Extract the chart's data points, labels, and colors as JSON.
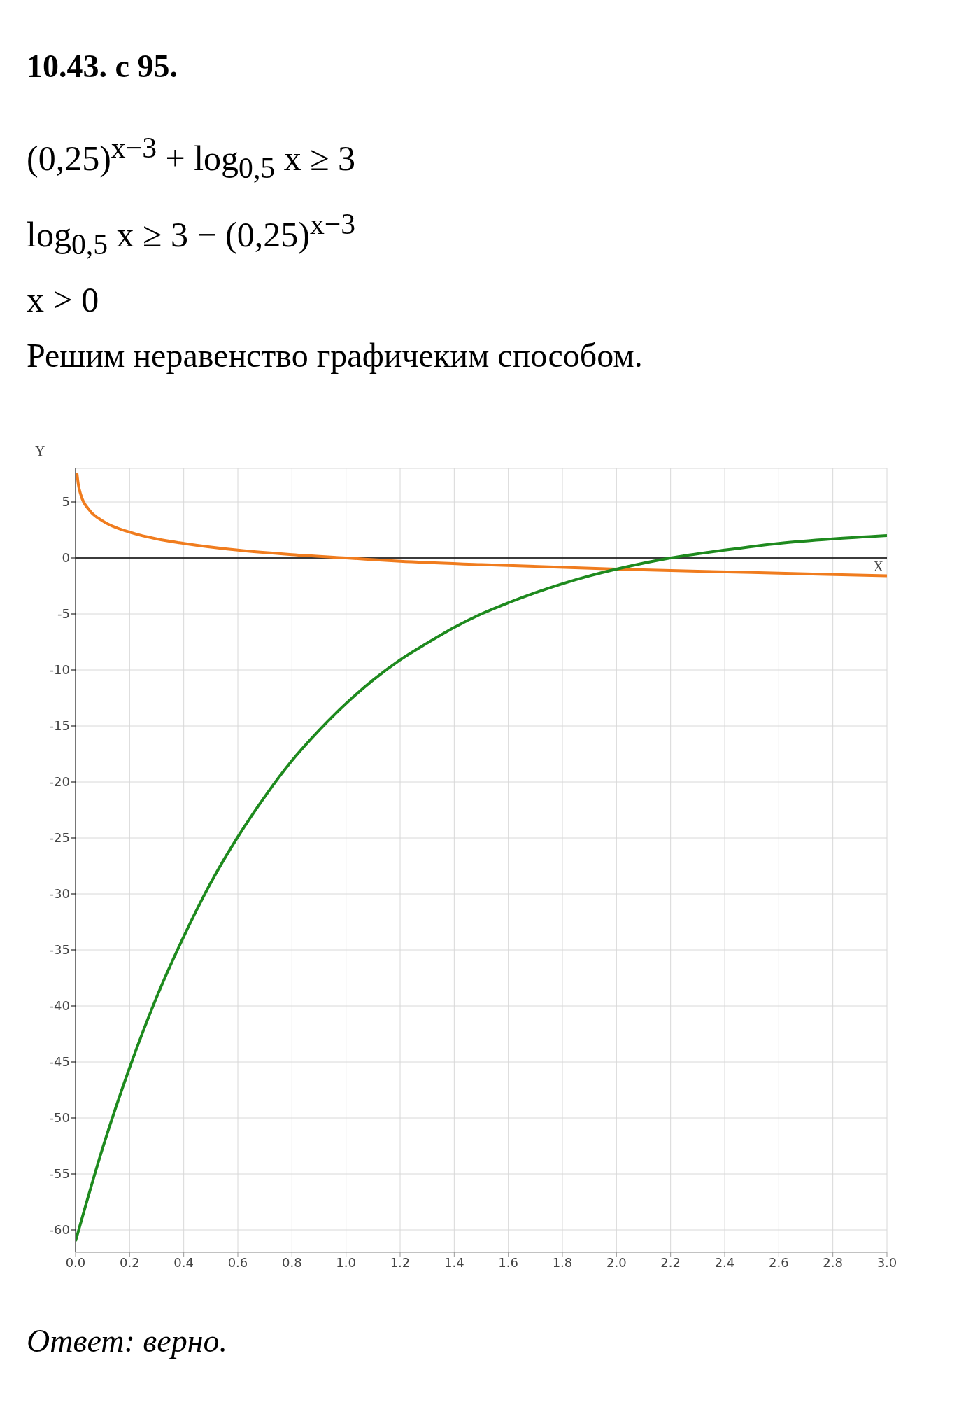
{
  "chart_data": {
    "type": "line",
    "title": "10.43. с 95.",
    "annotations": [
      "(0,25)$^{x−3}$ + log$_{0,5}$ x ≥ 3",
      "log$_{0,5}$ x ≥ 3 − (0,25)$^{x−3}$",
      "x > 0",
      "Решим неравенство графичеким способом.",
      "Ответ: верно."
    ],
    "xlabel": "X",
    "ylabel": "Y",
    "xlim": [
      0,
      3
    ],
    "ylim": [
      -62,
      8
    ],
    "xticks": [
      {
        "value": 0,
        "label": "0.0"
      },
      {
        "value": 0.2,
        "label": "0.2"
      },
      {
        "value": 0.4,
        "label": "0.4"
      },
      {
        "value": 0.6,
        "label": "0.6"
      },
      {
        "value": 0.8,
        "label": "0.8"
      },
      {
        "value": 1,
        "label": "1.0"
      },
      {
        "value": 1.2,
        "label": "1.2"
      },
      {
        "value": 1.4,
        "label": "1.4"
      },
      {
        "value": 1.6,
        "label": "1.6"
      },
      {
        "value": 1.8,
        "label": "1.8"
      },
      {
        "value": 2,
        "label": "2.0"
      },
      {
        "value": 2.2,
        "label": "2.2"
      },
      {
        "value": 2.4,
        "label": "2.4"
      },
      {
        "value": 2.6,
        "label": "2.6"
      },
      {
        "value": 2.8,
        "label": "2.8"
      },
      {
        "value": 3,
        "label": "3.0"
      }
    ],
    "yticks": [
      -60,
      -55,
      -50,
      -45,
      -40,
      -35,
      -30,
      -25,
      -20,
      -15,
      -10,
      -5,
      0,
      5
    ],
    "grid": true,
    "marker": "none",
    "line_style": "solid",
    "ref_lines": [
      {
        "axis": "y",
        "value": 0,
        "color": "#000000"
      }
    ],
    "series": [
      {
        "color": "#f07c1e",
        "x": [
          0.005,
          0.01,
          0.02,
          0.05,
          0.1,
          0.2,
          0.3,
          0.4,
          0.6,
          0.8,
          1,
          1.2,
          1.5,
          2,
          2.5,
          3
        ],
        "values": [
          7.6,
          6.6,
          5.6,
          4.3,
          3.3,
          2.3,
          1.7,
          1.3,
          0.7,
          0.3,
          0,
          -0.3,
          -0.6,
          -1,
          -1.3,
          -1.6
        ]
      },
      {
        "color": "#1e8a1e",
        "x": [
          0,
          0.1,
          0.2,
          0.3,
          0.4,
          0.5,
          0.6,
          0.7,
          0.8,
          0.9,
          1,
          1.1,
          1.2,
          1.3,
          1.4,
          1.5,
          1.6,
          1.7,
          1.8,
          1.9,
          2,
          2.2,
          2.4,
          2.6,
          2.8,
          3
        ],
        "values": [
          -61,
          -52.7,
          -45.5,
          -39.2,
          -33.8,
          -29,
          -24.9,
          -21.3,
          -18.1,
          -15.4,
          -13,
          -10.9,
          -9.1,
          -7.6,
          -6.2,
          -5,
          -4,
          -3.1,
          -2.3,
          -1.6,
          -1,
          0,
          0.7,
          1.3,
          1.7,
          2
        ]
      }
    ]
  }
}
